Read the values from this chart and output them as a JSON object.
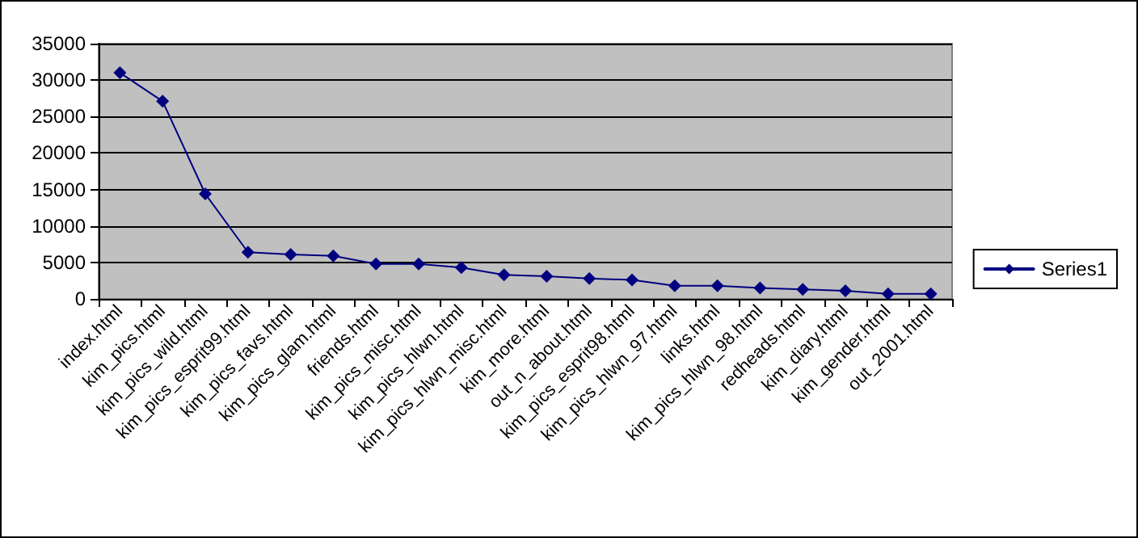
{
  "chart_data": {
    "type": "line",
    "categories": [
      "index.html",
      "kim_pics.html",
      "kim_pics_wild.html",
      "kim_pics_esprit99.html",
      "kim_pics_favs.html",
      "kim_pics_glam.html",
      "friends.html",
      "kim_pics_misc.html",
      "kim_pics_hlwn.html",
      "kim_pics_hlwn_misc.html",
      "kim_more.html",
      "out_n_about.html",
      "kim_pics_esprit98.html",
      "kim_pics_hlwn_97.html",
      "links.html",
      "kim_pics_hlwn_98.html",
      "redheads.html",
      "kim_diary.html",
      "kim_gender.html",
      "out_2001.html"
    ],
    "series": [
      {
        "name": "Series1",
        "color": "#000080",
        "values": [
          31000,
          27100,
          14400,
          6400,
          6100,
          5900,
          4800,
          4800,
          4300,
          3300,
          3100,
          2800,
          2600,
          1800,
          1800,
          1500,
          1300,
          1100,
          700,
          700
        ]
      }
    ],
    "ylim": [
      0,
      35000
    ],
    "yticks": [
      0,
      5000,
      10000,
      15000,
      20000,
      25000,
      30000,
      35000
    ],
    "grid": "y",
    "legend": "right",
    "marker": "diamond",
    "line_style": "solid"
  }
}
